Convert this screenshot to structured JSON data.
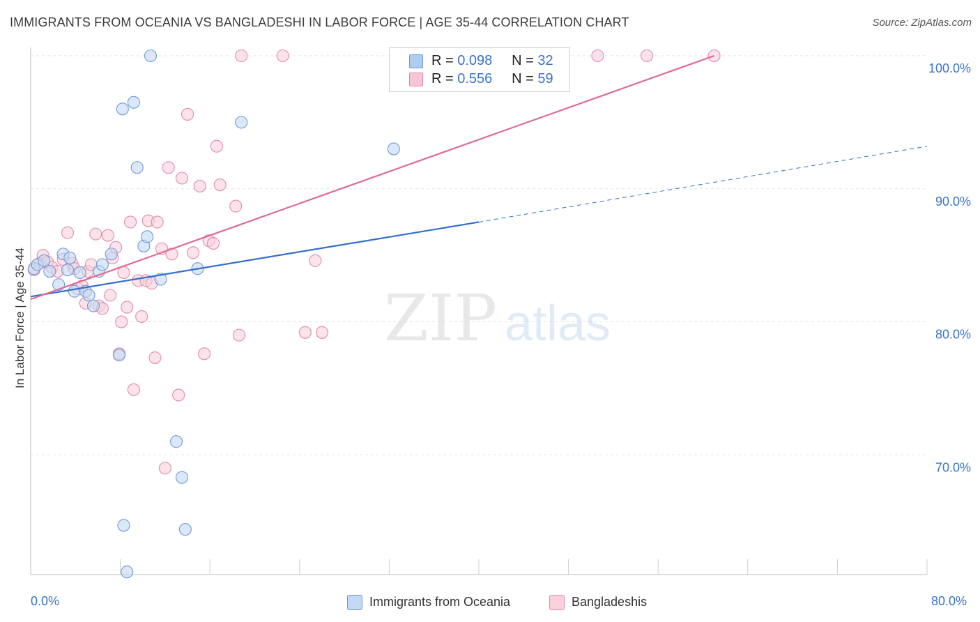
{
  "title": "IMMIGRANTS FROM OCEANIA VS BANGLADESHI IN LABOR FORCE | AGE 35-44 CORRELATION CHART",
  "source": "Source: ZipAtlas.com",
  "watermark": {
    "zip": "ZIP",
    "atlas": "atlas"
  },
  "legend": {
    "r_label": "R =",
    "n_label": "N =",
    "rows": [
      {
        "r": "0.098",
        "n": "32",
        "color": "#aecbf0",
        "border": "#6f9ad6"
      },
      {
        "r": "0.556",
        "n": "59",
        "color": "#f8c5d4",
        "border": "#e48aa7"
      }
    ]
  },
  "bottom_legend": [
    {
      "label": "Immigrants from Oceania",
      "color": "#c3d8f4",
      "border": "#6f9ad6"
    },
    {
      "label": "Bangladeshis",
      "color": "#f9d0dc",
      "border": "#e48aa7"
    }
  ],
  "chart_data": {
    "type": "scatter",
    "ylabel": "In Labor Force | Age 35-44",
    "xlim": [
      0,
      80
    ],
    "ylim": [
      61,
      100
    ],
    "x_tick_labels": [
      {
        "value": 0,
        "label": "0.0%"
      },
      {
        "value": 80,
        "label": "80.0%"
      }
    ],
    "y_tick_labels": [
      {
        "value": 70,
        "label": "70.0%"
      },
      {
        "value": 80,
        "label": "80.0%"
      },
      {
        "value": 90,
        "label": "90.0%"
      },
      {
        "value": 100,
        "label": "100.0%"
      }
    ],
    "series": [
      {
        "name": "Immigrants from Oceania",
        "color": "#6f9ad6",
        "fill": "#c3d8f4",
        "points": [
          [
            0.3,
            84.0
          ],
          [
            0.6,
            84.3
          ],
          [
            1.2,
            84.6
          ],
          [
            1.7,
            83.8
          ],
          [
            2.5,
            82.8
          ],
          [
            2.9,
            85.1
          ],
          [
            3.3,
            83.9
          ],
          [
            3.5,
            84.8
          ],
          [
            3.9,
            82.3
          ],
          [
            4.4,
            83.7
          ],
          [
            4.9,
            82.3
          ],
          [
            5.2,
            82.0
          ],
          [
            5.6,
            81.2
          ],
          [
            6.1,
            83.8
          ],
          [
            6.4,
            84.3
          ],
          [
            7.2,
            85.1
          ],
          [
            7.9,
            77.5
          ],
          [
            8.2,
            96.0
          ],
          [
            8.6,
            61.2
          ],
          [
            9.2,
            96.5
          ],
          [
            9.5,
            91.6
          ],
          [
            10.1,
            85.7
          ],
          [
            10.4,
            86.4
          ],
          [
            10.7,
            100.0
          ],
          [
            11.6,
            83.2
          ],
          [
            13.0,
            71.0
          ],
          [
            13.5,
            68.3
          ],
          [
            13.8,
            64.4
          ],
          [
            8.3,
            64.7
          ],
          [
            14.9,
            84.0
          ],
          [
            18.8,
            95.0
          ],
          [
            32.4,
            93.0
          ]
        ],
        "trend": {
          "x0": 0,
          "y0": 81.9,
          "x1": 40,
          "y1": 87.5,
          "dash_to_x": 80,
          "dash_to_y": 93.2
        }
      },
      {
        "name": "Bangladeshis",
        "color": "#e48aa7",
        "fill": "#f9d0dc",
        "points": [
          [
            0.3,
            83.9
          ],
          [
            0.8,
            84.4
          ],
          [
            1.1,
            85.0
          ],
          [
            1.5,
            84.5
          ],
          [
            1.9,
            84.1
          ],
          [
            2.4,
            83.8
          ],
          [
            2.9,
            84.7
          ],
          [
            3.3,
            86.7
          ],
          [
            3.7,
            84.4
          ],
          [
            3.9,
            84.0
          ],
          [
            4.2,
            82.5
          ],
          [
            4.6,
            82.7
          ],
          [
            4.9,
            81.4
          ],
          [
            5.1,
            83.8
          ],
          [
            5.4,
            84.3
          ],
          [
            5.8,
            86.6
          ],
          [
            6.1,
            81.2
          ],
          [
            6.4,
            81.0
          ],
          [
            6.9,
            86.5
          ],
          [
            7.1,
            82.0
          ],
          [
            7.3,
            84.8
          ],
          [
            7.6,
            85.6
          ],
          [
            7.9,
            77.6
          ],
          [
            8.1,
            80.0
          ],
          [
            8.3,
            83.7
          ],
          [
            8.6,
            81.1
          ],
          [
            8.9,
            87.5
          ],
          [
            9.2,
            74.9
          ],
          [
            9.6,
            83.1
          ],
          [
            9.9,
            80.4
          ],
          [
            10.3,
            83.1
          ],
          [
            10.5,
            87.6
          ],
          [
            10.8,
            82.9
          ],
          [
            11.1,
            77.3
          ],
          [
            11.3,
            87.5
          ],
          [
            11.7,
            85.5
          ],
          [
            12.0,
            69.0
          ],
          [
            12.3,
            91.6
          ],
          [
            12.6,
            85.1
          ],
          [
            13.2,
            74.5
          ],
          [
            13.5,
            90.8
          ],
          [
            14.0,
            95.6
          ],
          [
            14.5,
            85.2
          ],
          [
            15.1,
            90.2
          ],
          [
            15.5,
            77.6
          ],
          [
            15.9,
            86.1
          ],
          [
            16.3,
            85.9
          ],
          [
            16.6,
            93.2
          ],
          [
            16.9,
            90.3
          ],
          [
            18.3,
            88.7
          ],
          [
            18.6,
            79.0
          ],
          [
            18.8,
            100.0
          ],
          [
            22.5,
            100.0
          ],
          [
            24.5,
            79.2
          ],
          [
            25.4,
            84.6
          ],
          [
            26.0,
            79.2
          ],
          [
            50.6,
            100.0
          ],
          [
            55.0,
            100.0
          ],
          [
            61.0,
            100.0
          ]
        ],
        "trend": {
          "x0": 0,
          "y0": 81.7,
          "x1": 61,
          "y1": 100.0
        }
      }
    ]
  }
}
